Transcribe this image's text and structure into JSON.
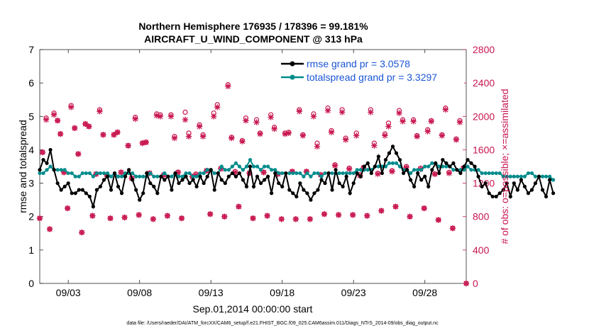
{
  "colors": {
    "rmse": "#000000",
    "spread": "#008b8b",
    "obs": "#c8174f",
    "legend_text": "#1a55d6"
  },
  "chart_data": {
    "type": "line",
    "title_line1": "Northern Hemisphere 176935 / 178396 = 99.181%",
    "title_line2": "AIRCRAFT_U_WIND_COMPONENT @ 313 hPa",
    "xlabel": "Sep.01,2014 00:00:00 start",
    "ylabel": "rmse and totalspread",
    "ylabel_right": "# of obs: o=possible; ×=assimilated",
    "xlim": [
      1.0,
      30.9
    ],
    "ylim": [
      0,
      7
    ],
    "ylim_right": [
      0,
      2800
    ],
    "x_ticks": [
      {
        "value": 3,
        "label": "09/03"
      },
      {
        "value": 8,
        "label": "09/08"
      },
      {
        "value": 13,
        "label": "09/13"
      },
      {
        "value": 18,
        "label": "09/18"
      },
      {
        "value": 23,
        "label": "09/23"
      },
      {
        "value": 28,
        "label": "09/28"
      }
    ],
    "y_ticks": [
      "0",
      "1",
      "2",
      "3",
      "4",
      "5",
      "6",
      "7"
    ],
    "y_ticks_right": [
      "0",
      "400",
      "800",
      "1200",
      "1600",
      "2000",
      "2400",
      "2800"
    ],
    "x_start": 1.0,
    "x_step": 0.25,
    "series": [
      {
        "name": "rmse grand pr = 3.0578",
        "values": [
          3.4,
          3.7,
          3.6,
          4.0,
          3.4,
          3.0,
          2.8,
          2.9,
          3.0,
          2.7,
          2.7,
          2.8,
          2.8,
          2.7,
          2.6,
          2.3,
          2.8,
          2.9,
          3.1,
          3.2,
          2.8,
          3.3,
          2.9,
          2.7,
          3.2,
          3.4,
          3.1,
          2.8,
          2.5,
          2.7,
          3.3,
          3.0,
          2.9,
          2.7,
          3.2,
          3.1,
          3.2,
          2.8,
          3.3,
          3.0,
          3.1,
          3.2,
          3.0,
          3.1,
          2.9,
          3.2,
          3.0,
          3.2,
          3.4,
          2.8,
          3.3,
          3.1,
          3.0,
          3.2,
          3.3,
          3.2,
          3.3,
          3.1,
          2.9,
          3.5,
          2.9,
          3.2,
          3.0,
          3.1,
          3.2,
          2.7,
          3.3,
          3.0,
          2.9,
          3.3,
          2.8,
          2.7,
          2.6,
          3.0,
          2.8,
          2.7,
          2.5,
          2.7,
          2.8,
          3.1,
          3.0,
          3.3,
          2.8,
          3.4,
          3.0,
          2.9,
          3.2,
          2.7,
          3.0,
          3.3,
          3.2,
          3.5,
          3.6,
          3.3,
          3.5,
          3.8,
          3.3,
          3.7,
          3.9,
          4.1,
          3.9,
          3.7,
          3.3,
          3.4,
          3.1,
          2.9,
          3.3,
          3.1,
          3.2,
          2.9,
          3.4,
          3.6,
          3.3,
          3.7,
          3.6,
          3.5,
          3.6,
          3.4,
          3.3,
          3.5,
          3.7,
          3.6,
          3.5,
          3.2,
          2.9,
          3.0,
          2.7,
          2.6,
          2.6,
          2.7,
          2.8,
          3.0,
          2.6,
          3.0,
          2.8,
          3.1,
          2.9,
          2.7,
          2.8,
          3.0,
          3.2,
          2.8,
          2.6,
          3.1,
          2.7
        ]
      },
      {
        "name": "totalspread grand pr = 3.3297",
        "values": [
          3.3,
          3.3,
          3.4,
          3.5,
          3.4,
          3.4,
          3.4,
          3.4,
          3.3,
          3.3,
          3.2,
          3.2,
          3.3,
          3.3,
          3.3,
          3.2,
          3.3,
          3.3,
          3.3,
          3.3,
          3.2,
          3.3,
          3.2,
          3.2,
          3.3,
          3.3,
          3.3,
          3.2,
          3.2,
          3.2,
          3.2,
          3.3,
          3.2,
          3.2,
          3.2,
          3.3,
          3.2,
          3.2,
          3.3,
          3.2,
          3.2,
          3.3,
          3.3,
          3.2,
          3.2,
          3.3,
          3.3,
          3.4,
          3.4,
          3.3,
          3.3,
          3.5,
          3.4,
          3.4,
          3.5,
          3.6,
          3.5,
          3.4,
          3.5,
          3.7,
          3.5,
          3.5,
          3.4,
          3.5,
          3.5,
          3.4,
          3.4,
          3.3,
          3.3,
          3.3,
          3.3,
          3.3,
          3.3,
          3.3,
          3.2,
          3.3,
          3.2,
          3.3,
          3.3,
          3.2,
          3.3,
          3.3,
          3.3,
          3.3,
          3.3,
          3.3,
          3.3,
          3.3,
          3.3,
          3.4,
          3.4,
          3.4,
          3.4,
          3.4,
          3.5,
          3.5,
          3.5,
          3.5,
          3.6,
          3.6,
          3.6,
          3.5,
          3.4,
          3.4,
          3.3,
          3.4,
          3.4,
          3.4,
          3.5,
          3.5,
          3.6,
          3.6,
          3.5,
          3.5,
          3.5,
          3.5,
          3.4,
          3.4,
          3.4,
          3.4,
          3.5,
          3.4,
          3.4,
          3.4,
          3.3,
          3.3,
          3.3,
          3.3,
          3.3,
          3.3,
          3.2,
          3.2,
          3.2,
          3.2,
          3.2,
          3.2,
          3.2,
          3.3,
          3.3,
          3.2,
          3.2,
          3.2,
          3.2,
          3.2,
          3.1
        ]
      }
    ],
    "obs_possible": [
      [
        1.0,
        780
      ],
      [
        1.2,
        1570
      ],
      [
        1.45,
        1980
      ],
      [
        1.7,
        650
      ],
      [
        2.0,
        2040
      ],
      [
        2.25,
        1950
      ],
      [
        2.45,
        1790
      ],
      [
        2.7,
        1330
      ],
      [
        2.95,
        900
      ],
      [
        3.2,
        2130
      ],
      [
        3.45,
        1860
      ],
      [
        3.7,
        1550
      ],
      [
        3.95,
        610
      ],
      [
        4.2,
        1910
      ],
      [
        4.45,
        1880
      ],
      [
        4.7,
        810
      ],
      [
        4.95,
        1310
      ],
      [
        5.2,
        2080
      ],
      [
        5.45,
        1780
      ],
      [
        5.7,
        1300
      ],
      [
        5.95,
        780
      ],
      [
        6.2,
        1780
      ],
      [
        6.45,
        1810
      ],
      [
        6.7,
        1330
      ],
      [
        6.95,
        790
      ],
      [
        7.2,
        1650
      ],
      [
        7.45,
        1260
      ],
      [
        7.7,
        1990
      ],
      [
        7.95,
        820
      ],
      [
        8.2,
        1680
      ],
      [
        8.45,
        1690
      ],
      [
        8.7,
        1320
      ],
      [
        8.95,
        770
      ],
      [
        9.2,
        2030
      ],
      [
        9.45,
        2020
      ],
      [
        9.7,
        1300
      ],
      [
        9.95,
        810
      ],
      [
        10.2,
        2020
      ],
      [
        10.45,
        1760
      ],
      [
        10.7,
        1330
      ],
      [
        10.95,
        780
      ],
      [
        11.2,
        2050
      ],
      [
        11.45,
        1800
      ],
      [
        11.7,
        1280
      ],
      [
        11.95,
        1310
      ],
      [
        12.2,
        1900
      ],
      [
        12.45,
        1780
      ],
      [
        12.7,
        1350
      ],
      [
        12.95,
        830
      ],
      [
        13.2,
        2040
      ],
      [
        13.45,
        2140
      ],
      [
        13.7,
        1380
      ],
      [
        13.95,
        800
      ],
      [
        14.2,
        2380
      ],
      [
        14.45,
        1750
      ],
      [
        14.7,
        1340
      ],
      [
        14.95,
        920
      ],
      [
        15.2,
        1710
      ],
      [
        15.45,
        1980
      ],
      [
        15.7,
        1320
      ],
      [
        15.95,
        780
      ],
      [
        16.2,
        1960
      ],
      [
        16.45,
        1800
      ],
      [
        16.7,
        1330
      ],
      [
        16.95,
        810
      ],
      [
        17.2,
        2020
      ],
      [
        17.45,
        1870
      ],
      [
        17.7,
        1310
      ],
      [
        17.95,
        770
      ],
      [
        18.2,
        1800
      ],
      [
        18.45,
        1810
      ],
      [
        18.7,
        1340
      ],
      [
        18.95,
        770
      ],
      [
        19.2,
        2080
      ],
      [
        19.45,
        1780
      ],
      [
        19.7,
        1340
      ],
      [
        19.95,
        770
      ],
      [
        20.2,
        2030
      ],
      [
        20.45,
        1680
      ],
      [
        20.7,
        1300
      ],
      [
        20.95,
        830
      ],
      [
        21.2,
        2100
      ],
      [
        21.45,
        1830
      ],
      [
        21.7,
        1420
      ],
      [
        21.95,
        820
      ],
      [
        22.2,
        2080
      ],
      [
        22.45,
        1740
      ],
      [
        22.7,
        1380
      ],
      [
        22.95,
        820
      ],
      [
        23.2,
        1800
      ],
      [
        23.45,
        1300
      ],
      [
        23.7,
        1390
      ],
      [
        23.95,
        810
      ],
      [
        24.2,
        2080
      ],
      [
        24.45,
        1680
      ],
      [
        24.7,
        1320
      ],
      [
        24.95,
        870
      ],
      [
        25.2,
        1790
      ],
      [
        25.45,
        1920
      ],
      [
        25.7,
        1350
      ],
      [
        25.95,
        920
      ],
      [
        26.2,
        2070
      ],
      [
        26.45,
        1960
      ],
      [
        26.7,
        1400
      ],
      [
        26.95,
        800
      ],
      [
        27.2,
        1960
      ],
      [
        27.45,
        1770
      ],
      [
        27.7,
        1380
      ],
      [
        27.95,
        900
      ],
      [
        28.2,
        1840
      ],
      [
        28.45,
        1950
      ],
      [
        28.7,
        1310
      ],
      [
        28.95,
        760
      ],
      [
        29.2,
        1780
      ],
      [
        29.45,
        2100
      ],
      [
        29.7,
        1330
      ],
      [
        29.95,
        660
      ],
      [
        30.2,
        1730
      ],
      [
        30.45,
        1950
      ],
      [
        30.7,
        1380
      ],
      [
        30.9,
        0
      ]
    ],
    "obs_assimilated": [
      [
        1.0,
        780
      ],
      [
        1.2,
        1570
      ],
      [
        1.45,
        1960
      ],
      [
        1.7,
        650
      ],
      [
        2.0,
        2020
      ],
      [
        2.25,
        1950
      ],
      [
        2.45,
        1790
      ],
      [
        2.7,
        1330
      ],
      [
        2.95,
        900
      ],
      [
        3.2,
        2110
      ],
      [
        3.45,
        1860
      ],
      [
        3.7,
        1550
      ],
      [
        3.95,
        610
      ],
      [
        4.2,
        1910
      ],
      [
        4.45,
        1880
      ],
      [
        4.7,
        810
      ],
      [
        4.95,
        1310
      ],
      [
        5.2,
        2060
      ],
      [
        5.45,
        1780
      ],
      [
        5.7,
        1300
      ],
      [
        5.95,
        780
      ],
      [
        6.2,
        1780
      ],
      [
        6.45,
        1810
      ],
      [
        6.7,
        1330
      ],
      [
        6.95,
        790
      ],
      [
        7.2,
        1650
      ],
      [
        7.45,
        1260
      ],
      [
        7.7,
        1970
      ],
      [
        7.95,
        820
      ],
      [
        8.2,
        1680
      ],
      [
        8.45,
        1690
      ],
      [
        8.7,
        1320
      ],
      [
        8.95,
        770
      ],
      [
        9.2,
        2010
      ],
      [
        9.45,
        2000
      ],
      [
        9.7,
        1300
      ],
      [
        9.95,
        810
      ],
      [
        10.2,
        2000
      ],
      [
        10.45,
        1740
      ],
      [
        10.7,
        1330
      ],
      [
        10.95,
        780
      ],
      [
        11.2,
        1960
      ],
      [
        11.45,
        1760
      ],
      [
        11.7,
        1280
      ],
      [
        11.95,
        1300
      ],
      [
        12.2,
        1880
      ],
      [
        12.45,
        1760
      ],
      [
        12.7,
        1350
      ],
      [
        12.95,
        830
      ],
      [
        13.2,
        2000
      ],
      [
        13.45,
        2110
      ],
      [
        13.7,
        1370
      ],
      [
        13.95,
        800
      ],
      [
        14.2,
        2360
      ],
      [
        14.45,
        1740
      ],
      [
        14.7,
        1330
      ],
      [
        14.95,
        920
      ],
      [
        15.2,
        1700
      ],
      [
        15.45,
        1950
      ],
      [
        15.7,
        1320
      ],
      [
        15.95,
        780
      ],
      [
        16.2,
        1930
      ],
      [
        16.45,
        1790
      ],
      [
        16.7,
        1330
      ],
      [
        16.95,
        810
      ],
      [
        17.2,
        1990
      ],
      [
        17.45,
        1850
      ],
      [
        17.7,
        1310
      ],
      [
        17.95,
        770
      ],
      [
        18.2,
        1790
      ],
      [
        18.45,
        1800
      ],
      [
        18.7,
        1340
      ],
      [
        18.95,
        770
      ],
      [
        19.2,
        2060
      ],
      [
        19.45,
        1770
      ],
      [
        19.7,
        1340
      ],
      [
        19.95,
        770
      ],
      [
        20.2,
        2000
      ],
      [
        20.45,
        1640
      ],
      [
        20.7,
        1300
      ],
      [
        20.95,
        830
      ],
      [
        21.2,
        2070
      ],
      [
        21.45,
        1810
      ],
      [
        21.7,
        1410
      ],
      [
        21.95,
        820
      ],
      [
        22.2,
        2050
      ],
      [
        22.45,
        1720
      ],
      [
        22.7,
        1370
      ],
      [
        22.95,
        820
      ],
      [
        23.2,
        1770
      ],
      [
        23.45,
        1290
      ],
      [
        23.7,
        1380
      ],
      [
        23.95,
        810
      ],
      [
        24.2,
        2050
      ],
      [
        24.45,
        1650
      ],
      [
        24.7,
        1310
      ],
      [
        24.95,
        870
      ],
      [
        25.2,
        1770
      ],
      [
        25.45,
        1880
      ],
      [
        25.7,
        1340
      ],
      [
        25.95,
        920
      ],
      [
        26.2,
        2040
      ],
      [
        26.45,
        1940
      ],
      [
        26.7,
        1390
      ],
      [
        26.95,
        800
      ],
      [
        27.2,
        1940
      ],
      [
        27.45,
        1760
      ],
      [
        27.7,
        1370
      ],
      [
        27.95,
        900
      ],
      [
        28.2,
        1820
      ],
      [
        28.45,
        1940
      ],
      [
        28.7,
        1310
      ],
      [
        28.95,
        760
      ],
      [
        29.2,
        1770
      ],
      [
        29.45,
        2080
      ],
      [
        29.7,
        1320
      ],
      [
        29.95,
        660
      ],
      [
        30.2,
        1720
      ],
      [
        30.45,
        1930
      ],
      [
        30.7,
        1380
      ],
      [
        30.9,
        0
      ]
    ]
  },
  "footer": "data file: /Users/raeder/DAI/ATM_forcXX/CAM6_setup/f.e21.FHIST_BGC.f09_025.CAM6assim.011/Diags_NTrS_2014-09/obs_diag_output.nc"
}
